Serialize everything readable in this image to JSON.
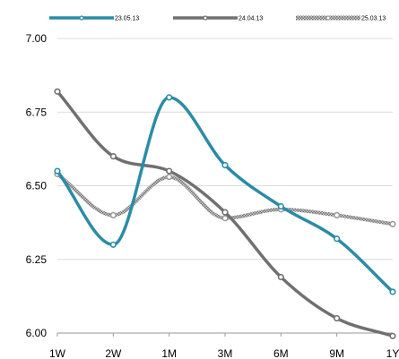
{
  "chart_data": {
    "type": "line",
    "title": "",
    "xlabel": "",
    "ylabel": "",
    "categories": [
      "1W",
      "2W",
      "1M",
      "3M",
      "6M",
      "9M",
      "1Y"
    ],
    "ylim": [
      6.0,
      7.0
    ],
    "yticks": [
      "6.00",
      "6.25",
      "6.50",
      "6.75",
      "7.00"
    ],
    "grid": true,
    "legend_position": "top",
    "series": [
      {
        "name": "23.05.13",
        "color": "#2a8ca6",
        "style": "solid",
        "values": [
          6.55,
          6.3,
          6.8,
          6.57,
          6.43,
          6.32,
          6.14
        ]
      },
      {
        "name": "24.04.13",
        "color": "#707070",
        "style": "solid",
        "values": [
          6.82,
          6.6,
          6.55,
          6.41,
          6.19,
          6.05,
          5.99
        ]
      },
      {
        "name": "25.03.13",
        "color": "#8c8c8c",
        "style": "hatched",
        "values": [
          6.54,
          6.4,
          6.53,
          6.39,
          6.42,
          6.4,
          6.37
        ]
      }
    ]
  }
}
